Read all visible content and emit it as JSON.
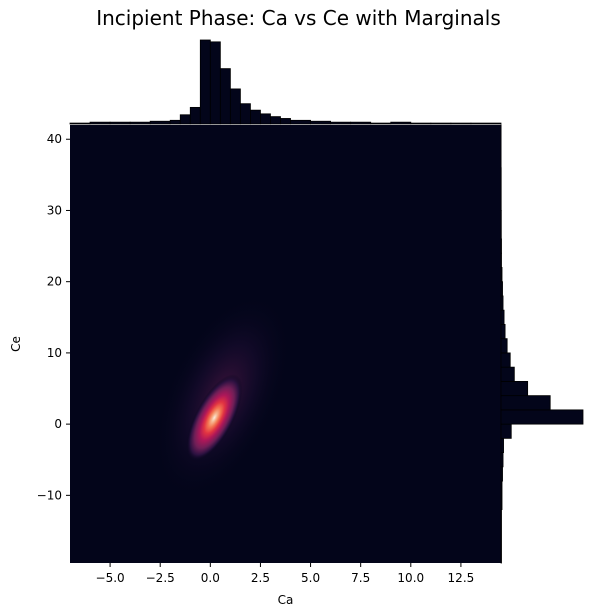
{
  "chart_data": {
    "type": "heatmap",
    "title": "Incipient Phase: Ca vs Ce with Marginals",
    "xlabel": "Ca",
    "ylabel": "Ce",
    "xlim": [
      -7.0,
      14.5
    ],
    "ylim": [
      -19.5,
      42.0
    ],
    "xticks": [
      -5.0,
      -2.5,
      0.0,
      2.5,
      5.0,
      7.5,
      10.0,
      12.5
    ],
    "xtick_labels": [
      "−5.0",
      "−2.5",
      "0.0",
      "2.5",
      "5.0",
      "7.5",
      "10.0",
      "12.5"
    ],
    "yticks": [
      -10,
      0,
      10,
      20,
      30,
      40
    ],
    "ytick_labels": [
      "−10",
      "0",
      "10",
      "20",
      "30",
      "40"
    ],
    "colormap": [
      "#03051a",
      "#2b1140",
      "#701f57",
      "#ae1759",
      "#e13342",
      "#f37651",
      "#f6b48e",
      "#faebdd"
    ],
    "background_color": "#03051a",
    "density_peak": {
      "x": 0.2,
      "y": 0.9
    },
    "marginal_x": {
      "bin_edges": [
        -7.0,
        -6.0,
        -5.0,
        -4.0,
        -3.0,
        -2.0,
        -1.5,
        -1.0,
        -0.5,
        0.0,
        0.5,
        1.0,
        1.5,
        2.0,
        2.5,
        3.0,
        3.5,
        4.0,
        5.0,
        6.0,
        7.0,
        8.0,
        9.0,
        10.0,
        11.0,
        12.0,
        13.0,
        14.5
      ],
      "counts": [
        1,
        2,
        2,
        2,
        3,
        4,
        10,
        18,
        91,
        89,
        60,
        38,
        22,
        15,
        11,
        8,
        6,
        4,
        3,
        2,
        2,
        1,
        2,
        1,
        1,
        1,
        1
      ]
    },
    "marginal_y": {
      "bin_edges": [
        -19.5,
        -12,
        -8,
        -6,
        -4,
        -2,
        0,
        2,
        4,
        6,
        8,
        10,
        12,
        14,
        16,
        18,
        20,
        22,
        24,
        26,
        30,
        36,
        42
      ],
      "counts": [
        0.5,
        1,
        1.5,
        2,
        2.5,
        10,
        80,
        48,
        26,
        13,
        9,
        6,
        4,
        3,
        2,
        1.5,
        1,
        0.5,
        0.5,
        0.3,
        0.2,
        0.1
      ]
    }
  }
}
